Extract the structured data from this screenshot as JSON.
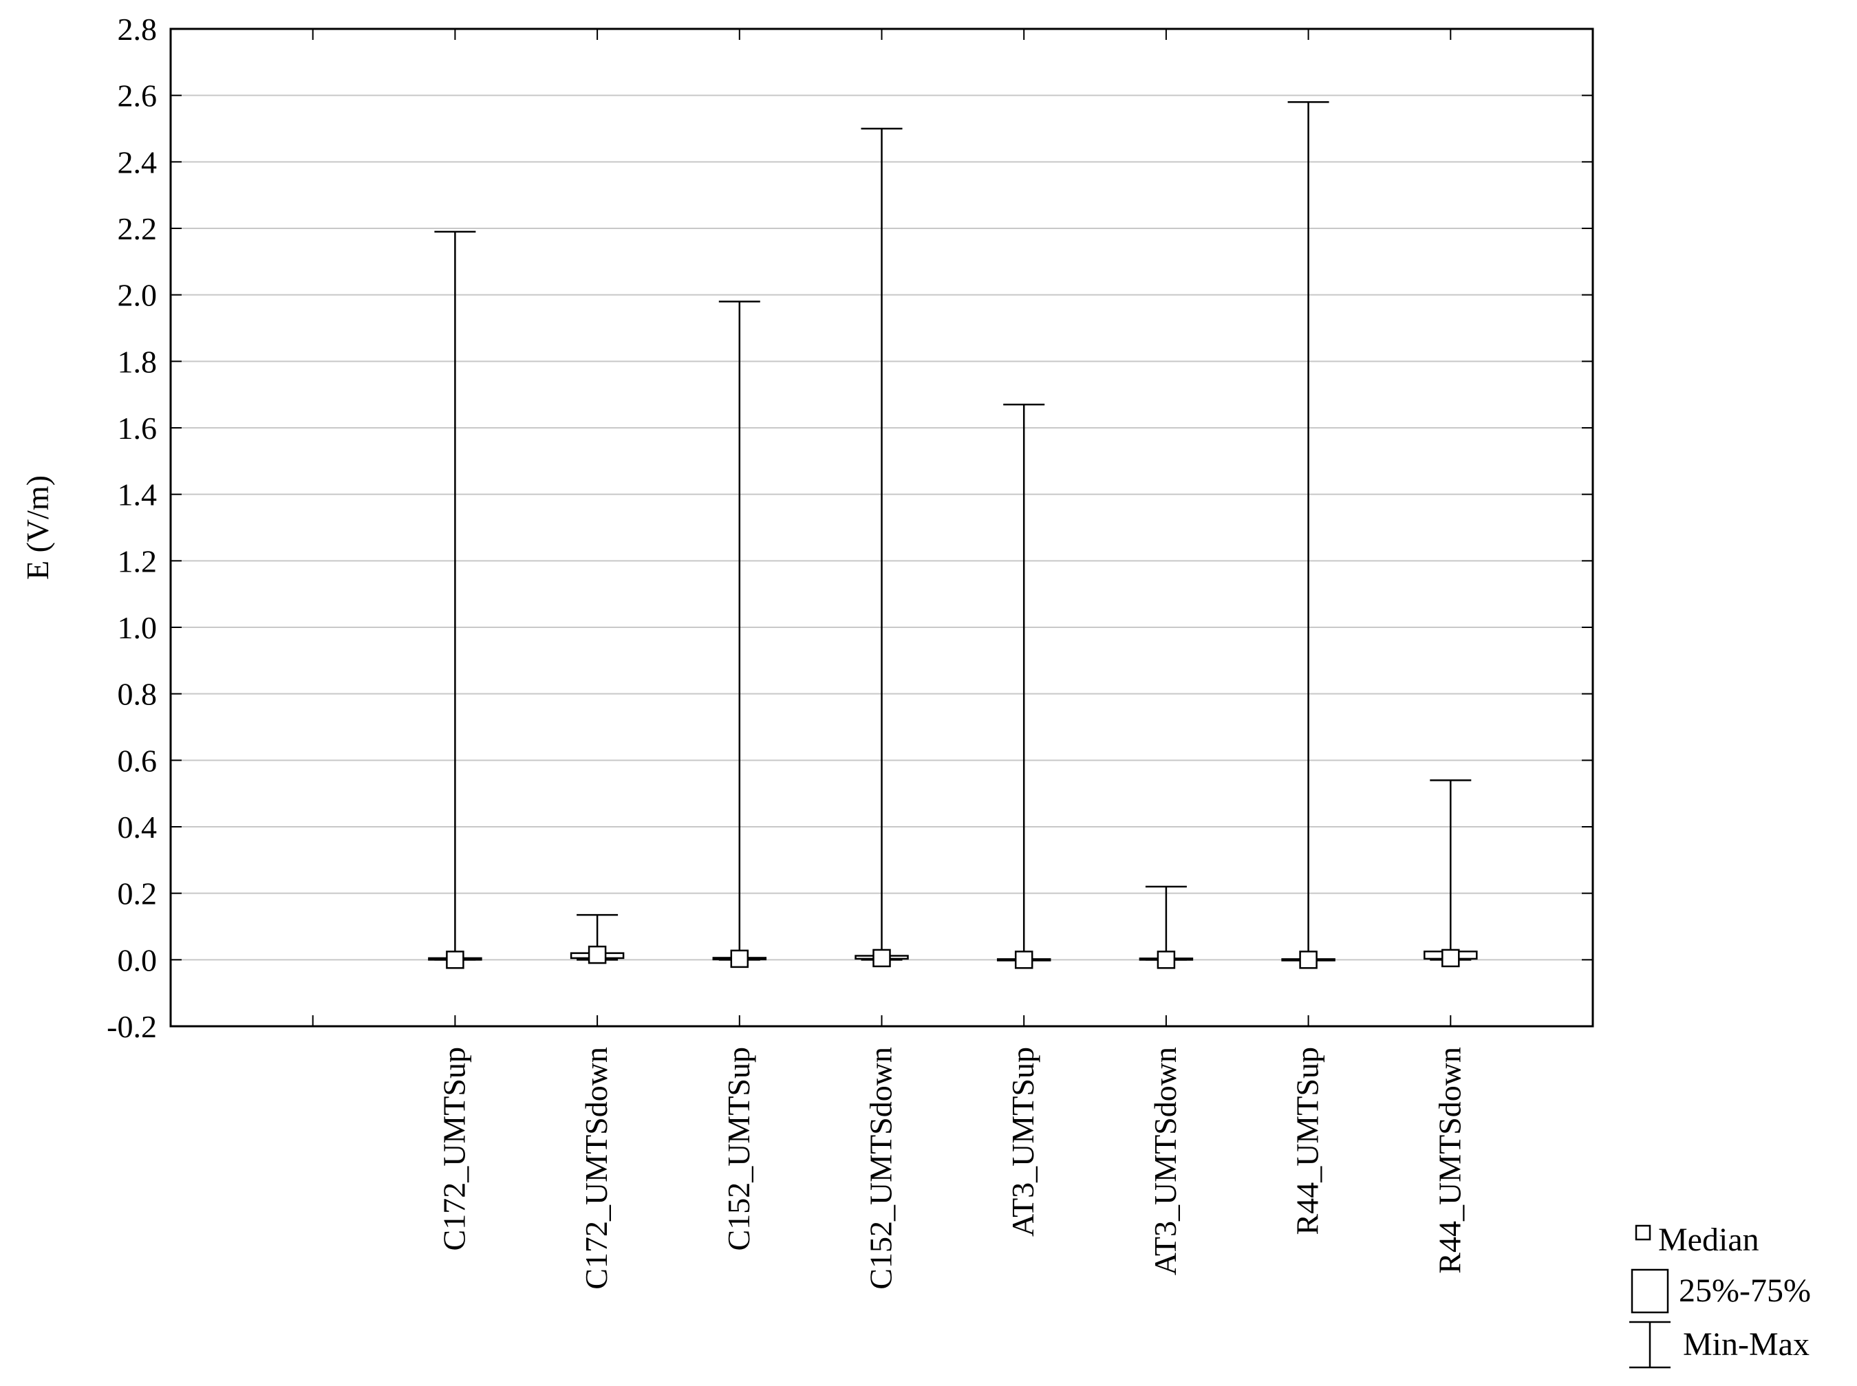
{
  "chart_data": {
    "type": "box",
    "title": "",
    "xlabel": "",
    "ylabel": "E (V/m)",
    "ylim": [
      -0.2,
      2.8
    ],
    "y_ticks": [
      "-0.2",
      "0.0",
      "0.2",
      "0.4",
      "0.6",
      "0.8",
      "1.0",
      "1.2",
      "1.4",
      "1.6",
      "1.8",
      "2.0",
      "2.2",
      "2.4",
      "2.6",
      "2.8"
    ],
    "grid": "horizontal",
    "categories": [
      "C172_UMTSup",
      "C172_UMTSdown",
      "C152_UMTSup",
      "C152_UMTSdown",
      "AT3_UMTSup",
      "AT3_UMTSdown",
      "R44_UMTSup",
      "R44_UMTSdown"
    ],
    "series": [
      {
        "category": "C172_UMTSup",
        "min": 0.0,
        "q1": 0.0,
        "median": 0.0,
        "q3": 0.005,
        "max": 2.19
      },
      {
        "category": "C172_UMTSdown",
        "min": 0.0,
        "q1": 0.005,
        "median": 0.015,
        "q3": 0.02,
        "max": 0.135
      },
      {
        "category": "C152_UMTSup",
        "min": 0.0,
        "q1": 0.001,
        "median": 0.003,
        "q3": 0.006,
        "max": 1.98
      },
      {
        "category": "C152_UMTSdown",
        "min": 0.0,
        "q1": 0.003,
        "median": 0.005,
        "q3": 0.012,
        "max": 2.5
      },
      {
        "category": "AT3_UMTSup",
        "min": 0.0,
        "q1": 0.0,
        "median": 0.0,
        "q3": 0.002,
        "max": 1.67
      },
      {
        "category": "AT3_UMTSdown",
        "min": 0.0,
        "q1": 0.0,
        "median": 0.0,
        "q3": 0.004,
        "max": 0.22
      },
      {
        "category": "R44_UMTSup",
        "min": 0.0,
        "q1": 0.0,
        "median": 0.0,
        "q3": 0.002,
        "max": 2.58
      },
      {
        "category": "R44_UMTSdown",
        "min": 0.0,
        "q1": 0.003,
        "median": 0.005,
        "q3": 0.025,
        "max": 0.54
      }
    ],
    "legend": {
      "position": "bottom-right",
      "items": [
        {
          "icon": "median-square-icon",
          "label": "Median"
        },
        {
          "icon": "box-rect-icon",
          "label": "25%-75%"
        },
        {
          "icon": "whisker-icon",
          "label": "Min-Max"
        }
      ]
    },
    "colors": {
      "line": "#000000",
      "grid": "#c8c8c8",
      "background": "#ffffff"
    }
  }
}
